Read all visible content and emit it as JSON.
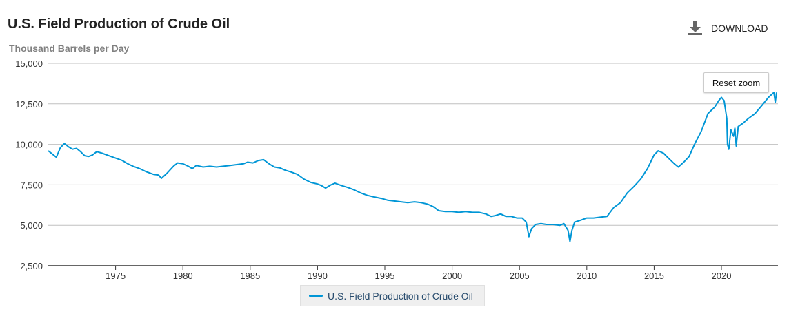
{
  "header": {
    "title": "U.S. Field Production of Crude Oil",
    "subtitle": "Thousand Barrels per Day",
    "download_label": "DOWNLOAD"
  },
  "controls": {
    "reset_zoom_label": "Reset zoom"
  },
  "colors": {
    "series": "#0096d6",
    "grid": "#c0c0c0",
    "axis": "#333333"
  },
  "chart_data": {
    "type": "line",
    "title": "U.S. Field Production of Crude Oil",
    "ylabel": "Thousand Barrels per Day",
    "xlabel": "",
    "xlim": [
      1970,
      2024.2
    ],
    "ylim": [
      2500,
      15000
    ],
    "yticks": [
      15000,
      12500,
      10000,
      7500,
      5000,
      2500
    ],
    "ytick_labels": [
      "15,000",
      "12,500",
      "10,000",
      "7,500",
      "5,000",
      "2,500"
    ],
    "xticks": [
      1975,
      1980,
      1985,
      1990,
      1995,
      2000,
      2005,
      2010,
      2015,
      2020
    ],
    "xtick_labels": [
      "1975",
      "1980",
      "1985",
      "1990",
      "1995",
      "2000",
      "2005",
      "2010",
      "2015",
      "2020"
    ],
    "grid": true,
    "legend": "bottom-center",
    "series": [
      {
        "name": "U.S. Field Production of Crude Oil",
        "points": [
          [
            1970.0,
            9600
          ],
          [
            1970.3,
            9400
          ],
          [
            1970.6,
            9200
          ],
          [
            1970.9,
            9800
          ],
          [
            1971.2,
            10050
          ],
          [
            1971.5,
            9850
          ],
          [
            1971.8,
            9700
          ],
          [
            1972.1,
            9750
          ],
          [
            1972.4,
            9550
          ],
          [
            1972.7,
            9300
          ],
          [
            1973.0,
            9250
          ],
          [
            1973.3,
            9350
          ],
          [
            1973.6,
            9550
          ],
          [
            1974.0,
            9450
          ],
          [
            1974.5,
            9300
          ],
          [
            1975.0,
            9150
          ],
          [
            1975.5,
            9000
          ],
          [
            1975.9,
            8800
          ],
          [
            1976.3,
            8650
          ],
          [
            1976.8,
            8500
          ],
          [
            1977.3,
            8300
          ],
          [
            1977.8,
            8150
          ],
          [
            1978.2,
            8100
          ],
          [
            1978.4,
            7900
          ],
          [
            1978.8,
            8200
          ],
          [
            1979.3,
            8650
          ],
          [
            1979.6,
            8850
          ],
          [
            1980.0,
            8800
          ],
          [
            1980.4,
            8650
          ],
          [
            1980.7,
            8500
          ],
          [
            1981.0,
            8700
          ],
          [
            1981.5,
            8600
          ],
          [
            1982.0,
            8650
          ],
          [
            1982.5,
            8600
          ],
          [
            1983.0,
            8650
          ],
          [
            1983.5,
            8700
          ],
          [
            1984.0,
            8750
          ],
          [
            1984.5,
            8800
          ],
          [
            1984.8,
            8900
          ],
          [
            1985.2,
            8850
          ],
          [
            1985.6,
            9000
          ],
          [
            1986.0,
            9050
          ],
          [
            1986.4,
            8800
          ],
          [
            1986.8,
            8600
          ],
          [
            1987.2,
            8550
          ],
          [
            1987.6,
            8400
          ],
          [
            1988.0,
            8300
          ],
          [
            1988.5,
            8150
          ],
          [
            1989.0,
            7850
          ],
          [
            1989.5,
            7650
          ],
          [
            1990.0,
            7550
          ],
          [
            1990.3,
            7450
          ],
          [
            1990.6,
            7300
          ],
          [
            1991.0,
            7500
          ],
          [
            1991.3,
            7600
          ],
          [
            1991.8,
            7450
          ],
          [
            1992.2,
            7350
          ],
          [
            1992.7,
            7200
          ],
          [
            1993.2,
            7000
          ],
          [
            1993.7,
            6850
          ],
          [
            1994.2,
            6750
          ],
          [
            1994.8,
            6650
          ],
          [
            1995.2,
            6550
          ],
          [
            1995.7,
            6500
          ],
          [
            1996.2,
            6450
          ],
          [
            1996.7,
            6400
          ],
          [
            1997.2,
            6450
          ],
          [
            1997.7,
            6400
          ],
          [
            1998.2,
            6300
          ],
          [
            1998.6,
            6150
          ],
          [
            1999.0,
            5900
          ],
          [
            1999.5,
            5850
          ],
          [
            2000.0,
            5850
          ],
          [
            2000.5,
            5800
          ],
          [
            2001.0,
            5850
          ],
          [
            2001.5,
            5800
          ],
          [
            2002.0,
            5800
          ],
          [
            2002.5,
            5700
          ],
          [
            2002.9,
            5550
          ],
          [
            2003.2,
            5600
          ],
          [
            2003.6,
            5700
          ],
          [
            2004.0,
            5550
          ],
          [
            2004.4,
            5550
          ],
          [
            2004.8,
            5450
          ],
          [
            2005.2,
            5450
          ],
          [
            2005.5,
            5200
          ],
          [
            2005.7,
            4300
          ],
          [
            2005.9,
            4800
          ],
          [
            2006.2,
            5050
          ],
          [
            2006.6,
            5100
          ],
          [
            2007.0,
            5050
          ],
          [
            2007.5,
            5050
          ],
          [
            2008.0,
            5000
          ],
          [
            2008.3,
            5100
          ],
          [
            2008.6,
            4700
          ],
          [
            2008.75,
            4000
          ],
          [
            2008.9,
            4700
          ],
          [
            2009.1,
            5200
          ],
          [
            2009.5,
            5300
          ],
          [
            2010.0,
            5450
          ],
          [
            2010.5,
            5450
          ],
          [
            2011.0,
            5500
          ],
          [
            2011.5,
            5550
          ],
          [
            2012.0,
            6100
          ],
          [
            2012.5,
            6400
          ],
          [
            2013.0,
            7000
          ],
          [
            2013.5,
            7400
          ],
          [
            2014.0,
            7850
          ],
          [
            2014.5,
            8500
          ],
          [
            2015.0,
            9350
          ],
          [
            2015.3,
            9600
          ],
          [
            2015.7,
            9450
          ],
          [
            2016.0,
            9200
          ],
          [
            2016.5,
            8800
          ],
          [
            2016.8,
            8600
          ],
          [
            2017.2,
            8900
          ],
          [
            2017.6,
            9250
          ],
          [
            2018.0,
            10000
          ],
          [
            2018.5,
            10800
          ],
          [
            2019.0,
            11900
          ],
          [
            2019.5,
            12300
          ],
          [
            2019.8,
            12700
          ],
          [
            2020.0,
            12900
          ],
          [
            2020.2,
            12700
          ],
          [
            2020.4,
            11600
          ],
          [
            2020.45,
            10000
          ],
          [
            2020.55,
            9700
          ],
          [
            2020.7,
            10900
          ],
          [
            2020.9,
            10500
          ],
          [
            2021.0,
            11000
          ],
          [
            2021.1,
            9900
          ],
          [
            2021.25,
            11100
          ],
          [
            2021.6,
            11300
          ],
          [
            2022.0,
            11600
          ],
          [
            2022.5,
            11900
          ],
          [
            2023.0,
            12400
          ],
          [
            2023.5,
            12900
          ],
          [
            2023.9,
            13200
          ],
          [
            2024.0,
            12600
          ],
          [
            2024.1,
            13200
          ]
        ]
      }
    ]
  }
}
